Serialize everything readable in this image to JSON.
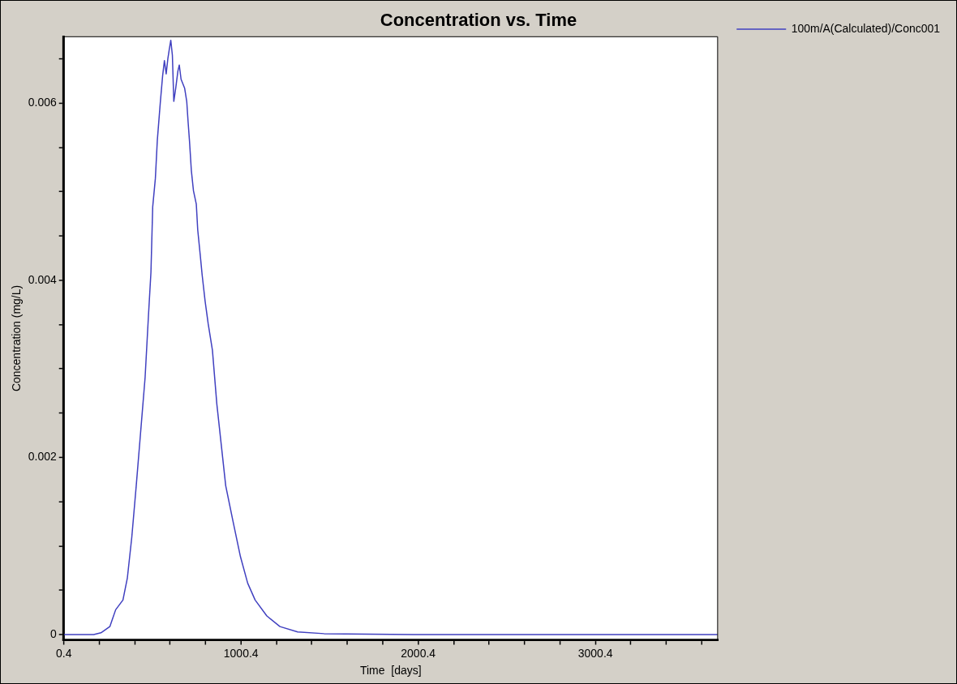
{
  "chart_data": {
    "type": "line",
    "title": "Concentration vs. Time",
    "xlabel": "Time  [days]",
    "ylabel": "Concentration (mg/L)",
    "xlim": [
      0.4,
      3690
    ],
    "xticks": [
      0.4,
      {
        "value": 200.4,
        "label": null
      },
      {
        "value": 400.4,
        "label": null
      },
      {
        "value": 600.4,
        "label": null
      },
      {
        "value": 800.4,
        "label": null
      },
      1000.4,
      {
        "value": 1200.4,
        "label": null
      },
      {
        "value": 1400.4,
        "label": null
      },
      {
        "value": 1600.4,
        "label": null
      },
      {
        "value": 1800.4,
        "label": null
      },
      2000.4,
      {
        "value": 2200.4,
        "label": null
      },
      {
        "value": 2400.4,
        "label": null
      },
      {
        "value": 2600.4,
        "label": null
      },
      {
        "value": 2800.4,
        "label": null
      },
      3000.4,
      {
        "value": 3200.4,
        "label": null
      },
      {
        "value": 3400.4,
        "label": null
      },
      {
        "value": 3600.4,
        "label": null
      }
    ],
    "ylim": [
      -6e-05,
      0.00675
    ],
    "yticks": [
      0,
      {
        "value": 0.0005,
        "label": null
      },
      {
        "value": 0.001,
        "label": null
      },
      {
        "value": 0.0015,
        "label": null
      },
      0.002,
      {
        "value": 0.0025,
        "label": null
      },
      {
        "value": 0.003,
        "label": null
      },
      {
        "value": 0.0035,
        "label": null
      },
      0.004,
      {
        "value": 0.0045,
        "label": null
      },
      {
        "value": 0.005,
        "label": null
      },
      {
        "value": 0.0055,
        "label": null
      },
      0.006,
      {
        "value": 0.0065,
        "label": null
      }
    ],
    "grid": false,
    "legend": "top right",
    "marker": "none",
    "line_style": "solid",
    "series": [
      {
        "name": "100m/A(Calculated)/Conc001",
        "color": "#4040c0",
        "x": [
          0.4,
          169,
          210,
          260,
          293,
          334,
          359,
          384,
          409,
          434,
          459,
          478,
          492,
          502,
          517,
          528,
          545,
          558,
          568,
          578,
          588,
          595,
          604,
          613,
          621,
          632,
          644,
          652,
          662,
          682,
          694,
          702,
          710,
          720,
          732,
          748,
          756,
          770,
          781,
          798,
          815,
          839,
          864,
          889,
          914,
          955,
          997,
          1038,
          1080,
          1146,
          1220,
          1320,
          1469,
          2000,
          3000,
          3690
        ],
        "values": [
          0,
          0,
          2e-05,
          9e-05,
          0.00028,
          0.00039,
          0.00064,
          0.0011,
          0.00168,
          0.00229,
          0.0029,
          0.0036,
          0.00409,
          0.00483,
          0.00515,
          0.00558,
          0.00601,
          0.00631,
          0.00648,
          0.00633,
          0.00651,
          0.0066,
          0.00671,
          0.00654,
          0.00602,
          0.00617,
          0.00636,
          0.00643,
          0.00627,
          0.00617,
          0.00602,
          0.00578,
          0.00556,
          0.00524,
          0.00501,
          0.00486,
          0.00457,
          0.00429,
          0.00406,
          0.00376,
          0.00351,
          0.00321,
          0.0026,
          0.00214,
          0.00168,
          0.00128,
          0.00088,
          0.00058,
          0.00039,
          0.00021,
          9e-05,
          3e-05,
          1e-05,
          0,
          0,
          0
        ]
      }
    ]
  }
}
